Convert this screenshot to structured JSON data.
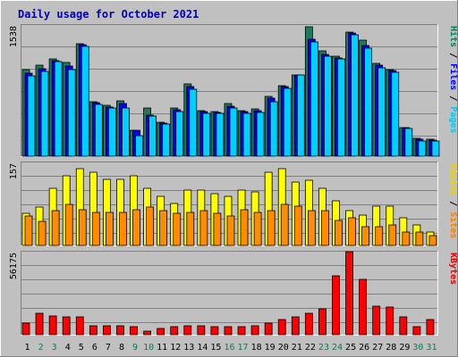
{
  "chart_data": {
    "type": "bar",
    "title": "Daily usage for October 2021",
    "categories": [
      "1",
      "2",
      "3",
      "4",
      "5",
      "6",
      "7",
      "8",
      "9",
      "10",
      "11",
      "12",
      "13",
      "14",
      "15",
      "16",
      "17",
      "18",
      "19",
      "20",
      "21",
      "22",
      "23",
      "24",
      "25",
      "26",
      "27",
      "28",
      "29",
      "30",
      "31"
    ],
    "weekend_days": [
      "2",
      "3",
      "9",
      "10",
      "16",
      "17",
      "23",
      "24",
      "30",
      "31"
    ],
    "panels": [
      {
        "id": "hits",
        "ymax_label": "1538",
        "ymax": 1538,
        "axis_labels": [
          {
            "text": "Hits",
            "color": "#00805c"
          },
          {
            "text": "Files",
            "color": "#0000ff"
          },
          {
            "text": "Pages",
            "color": "#00c8f0"
          }
        ],
        "series": [
          {
            "name": "Hits",
            "color": "#1f7a5c",
            "values": [
              1010,
              1070,
              1140,
              1100,
              1320,
              640,
              600,
              650,
              300,
              560,
              400,
              560,
              850,
              530,
              520,
              620,
              530,
              550,
              700,
              830,
              950,
              1520,
              1230,
              1170,
              1450,
              1360,
              1090,
              1020,
              340,
              210,
              200
            ]
          },
          {
            "name": "Files",
            "color": "#0000ff",
            "values": [
              970,
              1030,
              1120,
              1060,
              1310,
              630,
              580,
              620,
              300,
              480,
              390,
              540,
              820,
              520,
              510,
              590,
              520,
              530,
              680,
              820,
              950,
              1370,
              1190,
              1150,
              1440,
              1300,
              1070,
              1000,
              330,
              200,
              190
            ]
          },
          {
            "name": "Pages",
            "color": "#00d0ff",
            "values": [
              940,
              990,
              1110,
              1020,
              1290,
              610,
              570,
              570,
              240,
              470,
              380,
              520,
              780,
              500,
              500,
              570,
              500,
              510,
              640,
              800,
              950,
              1340,
              1170,
              1140,
              1420,
              1270,
              1040,
              980,
              320,
              180,
              180
            ]
          }
        ]
      },
      {
        "id": "visits",
        "ymax_label": "157",
        "ymax": 157,
        "axis_labels": [
          {
            "text": "Visits",
            "color": "#f0d000"
          },
          {
            "text": "Sites",
            "color": "#f08000"
          }
        ],
        "series": [
          {
            "name": "Visits",
            "color": "#ffff00",
            "values": [
              60,
              72,
              108,
              132,
              145,
              138,
              125,
              125,
              132,
              108,
              93,
              80,
              105,
              105,
              98,
              93,
              105,
              102,
              138,
              145,
              120,
              123,
              108,
              85,
              65,
              58,
              75,
              75,
              52,
              38,
              25
            ]
          },
          {
            "name": "Sites",
            "color": "#ff8c00",
            "values": [
              55,
              45,
              65,
              78,
              68,
              63,
              62,
              63,
              68,
              72,
              65,
              60,
              63,
              66,
              60,
              55,
              68,
              63,
              65,
              78,
              75,
              65,
              65,
              48,
              52,
              35,
              35,
              38,
              25,
              25,
              18
            ]
          }
        ]
      },
      {
        "id": "kbytes",
        "ymax_label": "56175",
        "ymax": 56175,
        "axis_labels": [
          {
            "text": "KBytes",
            "color": "#e00000"
          }
        ],
        "series": [
          {
            "name": "KBytes",
            "color": "#ff0000",
            "values": [
              7700,
              14500,
              12500,
              12000,
              11800,
              6000,
              6000,
              6000,
              5700,
              2400,
              4100,
              5700,
              6000,
              6000,
              5700,
              5700,
              5700,
              6000,
              8000,
              10000,
              12000,
              14500,
              17500,
              40000,
              56175,
              37500,
              19500,
              19000,
              12000,
              5700,
              10000
            ]
          }
        ]
      }
    ]
  }
}
